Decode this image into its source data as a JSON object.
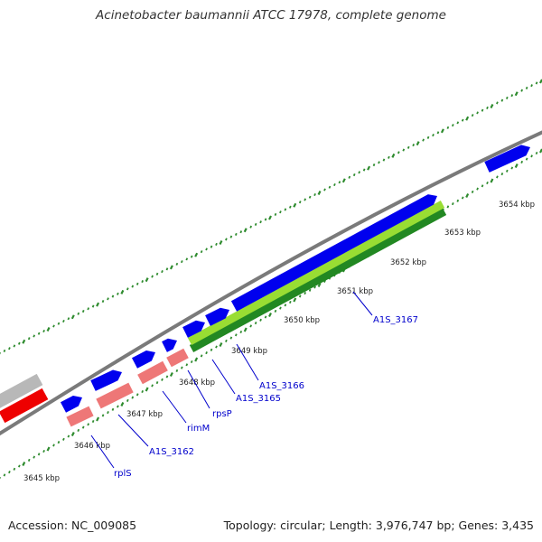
{
  "title": "Acinetobacter baumannii ATCC 17978, complete genome",
  "footer": {
    "accession": "Accession: NC_009085",
    "summary": "Topology: circular; Length: 3,976,747 bp; Genes: 3,435"
  },
  "colors": {
    "backbone": "#7a7a7a",
    "tick": "#2e8b2e",
    "gene_forward": "#0000ee",
    "gene_label": "#0000cc",
    "trna_red": "#ee0000",
    "rrna_pink": "#ee7777",
    "gene_grey": "#b8b8b8",
    "feature_green_light": "#99dd33",
    "feature_green_dark": "#228822",
    "kbp_label": "#222222"
  },
  "ticks": {
    "kbp_labels": [
      "3645 kbp",
      "3646 kbp",
      "3647 kbp",
      "3648 kbp",
      "3649 kbp",
      "3650 kbp",
      "3651 kbp",
      "3652 kbp",
      "3653 kbp",
      "3654 kbp"
    ]
  },
  "gene_labels": [
    "rplS",
    "A1S_3162",
    "rimM",
    "rpsP",
    "A1S_3165",
    "A1S_3166",
    "A1S_3167"
  ],
  "features": [
    {
      "type": "gene",
      "color": "blue",
      "strand": "forward"
    },
    {
      "type": "gene",
      "color": "blue",
      "strand": "forward"
    },
    {
      "type": "gene",
      "color": "blue",
      "strand": "forward"
    },
    {
      "type": "gene",
      "color": "blue",
      "strand": "forward"
    },
    {
      "type": "gene",
      "color": "blue",
      "strand": "forward"
    },
    {
      "type": "gene",
      "color": "blue",
      "strand": "forward"
    },
    {
      "type": "gene",
      "color": "blue",
      "strand": "forward"
    },
    {
      "type": "gene",
      "color": "blue",
      "strand": "forward"
    },
    {
      "type": "gene",
      "color": "blue",
      "strand": "forward"
    },
    {
      "type": "gene",
      "color": "grey"
    },
    {
      "type": "gene",
      "color": "red"
    },
    {
      "type": "gene",
      "color": "pink"
    },
    {
      "type": "gene",
      "color": "pink"
    },
    {
      "type": "gene",
      "color": "pink"
    },
    {
      "type": "gene",
      "color": "pink"
    },
    {
      "type": "feature",
      "color": "green-light"
    },
    {
      "type": "feature",
      "color": "green-dark"
    }
  ]
}
